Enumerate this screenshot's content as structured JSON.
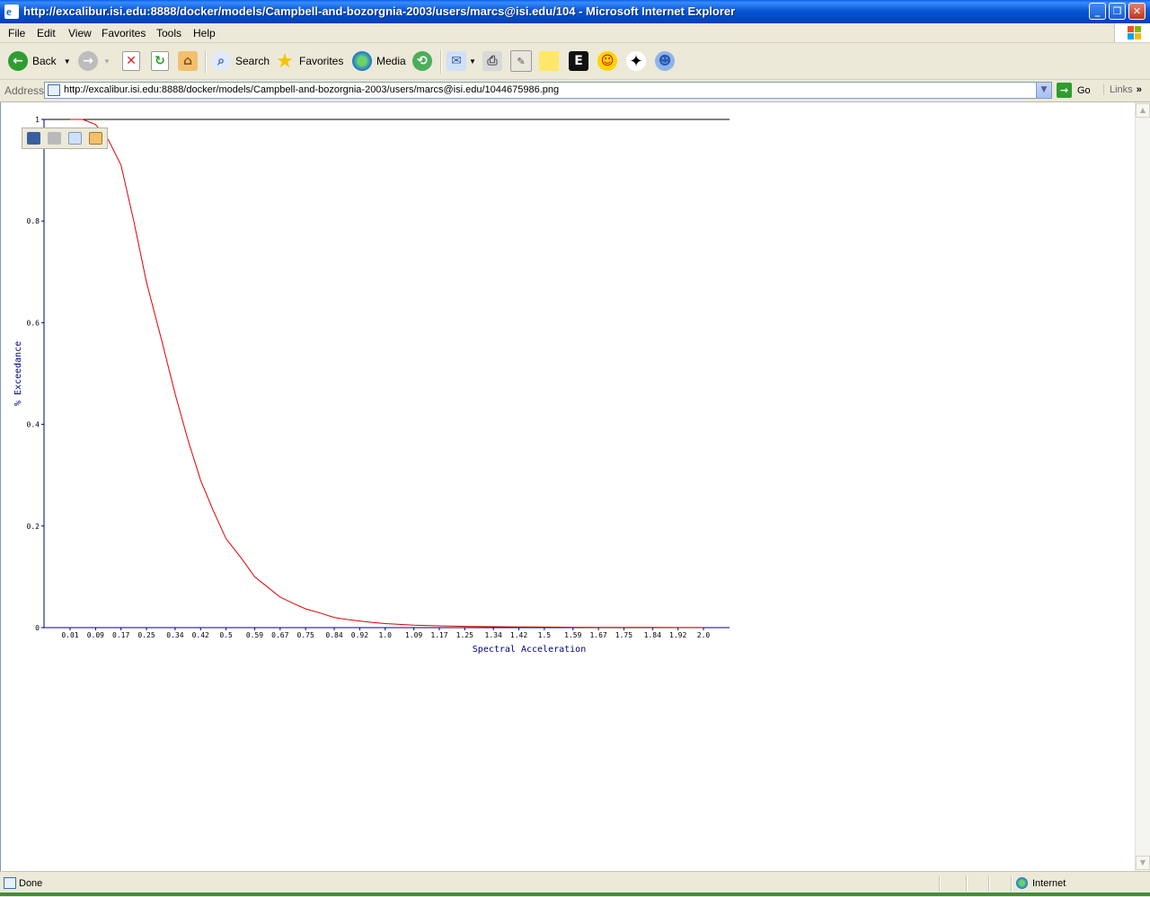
{
  "window": {
    "title": "http://excalibur.isi.edu:8888/docker/models/Campbell-and-bozorgnia-2003/users/marcs@isi.edu/104 - Microsoft Internet Explorer",
    "min_glyph": "_",
    "max_glyph": "❐",
    "close_glyph": "✕"
  },
  "menu": {
    "file": "File",
    "edit": "Edit",
    "view": "View",
    "favorites": "Favorites",
    "tools": "Tools",
    "help": "Help"
  },
  "toolbar": {
    "back": "Back",
    "search": "Search",
    "favorites": "Favorites",
    "media": "Media"
  },
  "address": {
    "label": "Address",
    "url": "http://excalibur.isi.edu:8888/docker/models/Campbell-and-bozorgnia-2003/users/marcs@isi.edu/1044675986.png",
    "go": "Go",
    "links": "Links"
  },
  "status": {
    "text": "Done",
    "zone": "Internet"
  },
  "chart_data": {
    "type": "line",
    "xlabel": "Spectral Acceleration",
    "ylabel": "% Exceedance",
    "x_tick_labels": [
      "0.01",
      "0.09",
      "0.17",
      "0.25",
      "0.34",
      "0.42",
      "0.5",
      "0.59",
      "0.67",
      "0.75",
      "0.84",
      "0.92",
      "1.0",
      "1.09",
      "1.17",
      "1.25",
      "1.34",
      "1.42",
      "1.5",
      "1.59",
      "1.67",
      "1.75",
      "1.84",
      "1.92",
      "2.0"
    ],
    "y_tick_labels": [
      "0",
      "0.2",
      "0.4",
      "0.6",
      "0.8",
      "1"
    ],
    "ylim": [
      0,
      1
    ],
    "grid": false,
    "colors": {
      "line": "#dd0000",
      "axis": "#000080"
    },
    "series": [
      {
        "x": [
          0.01,
          0.05,
          0.09,
          0.13,
          0.17,
          0.21,
          0.25,
          0.3,
          0.34,
          0.38,
          0.42,
          0.46,
          0.5,
          0.55,
          0.59,
          0.63,
          0.67,
          0.71,
          0.75,
          0.8,
          0.84,
          0.88,
          0.92,
          0.96,
          1.0,
          1.09,
          1.17,
          1.25,
          1.34,
          1.42,
          1.5,
          1.59,
          1.67,
          1.75,
          1.84,
          1.92,
          2.0
        ],
        "values": [
          1.0,
          1.0,
          0.99,
          0.96,
          0.91,
          0.8,
          0.68,
          0.56,
          0.46,
          0.37,
          0.29,
          0.23,
          0.175,
          0.135,
          0.1,
          0.08,
          0.06,
          0.048,
          0.037,
          0.028,
          0.02,
          0.016,
          0.013,
          0.01,
          0.008,
          0.005,
          0.0035,
          0.0025,
          0.0018,
          0.0013,
          0.001,
          0.0007,
          0.0005,
          0.0004,
          0.0003,
          0.0002,
          0.0001
        ]
      }
    ]
  }
}
